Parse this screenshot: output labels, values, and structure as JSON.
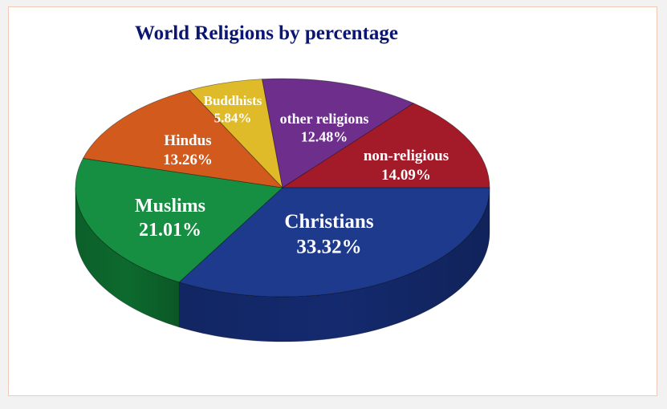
{
  "chart_data": {
    "type": "pie",
    "title": "World Religions by percentage",
    "slices": [
      {
        "name": "Christians",
        "value": 33.32,
        "label_value": "33.32%",
        "color": "#1e3a8c",
        "side_color": "#142a6e"
      },
      {
        "name": "Muslims",
        "value": 21.01,
        "label_value": "21.01%",
        "color": "#168f42",
        "side_color": "#0d6a2e"
      },
      {
        "name": "Hindus",
        "value": 13.26,
        "label_value": "13.26%",
        "color": "#d35a1d",
        "side_color": "#a8440f"
      },
      {
        "name": "Buddhists",
        "value": 5.84,
        "label_value": "5.84%",
        "color": "#dfbb2a",
        "side_color": "#b2931a"
      },
      {
        "name": "other religions",
        "value": 12.48,
        "label_value": "12.48%",
        "color": "#6e2f8c",
        "side_color": "#52206a"
      },
      {
        "name": "non-religious",
        "value": 14.09,
        "label_value": "14.09%",
        "color": "#a31a28",
        "side_color": "#7c1019"
      }
    ],
    "legend": "none",
    "three_d": true
  }
}
